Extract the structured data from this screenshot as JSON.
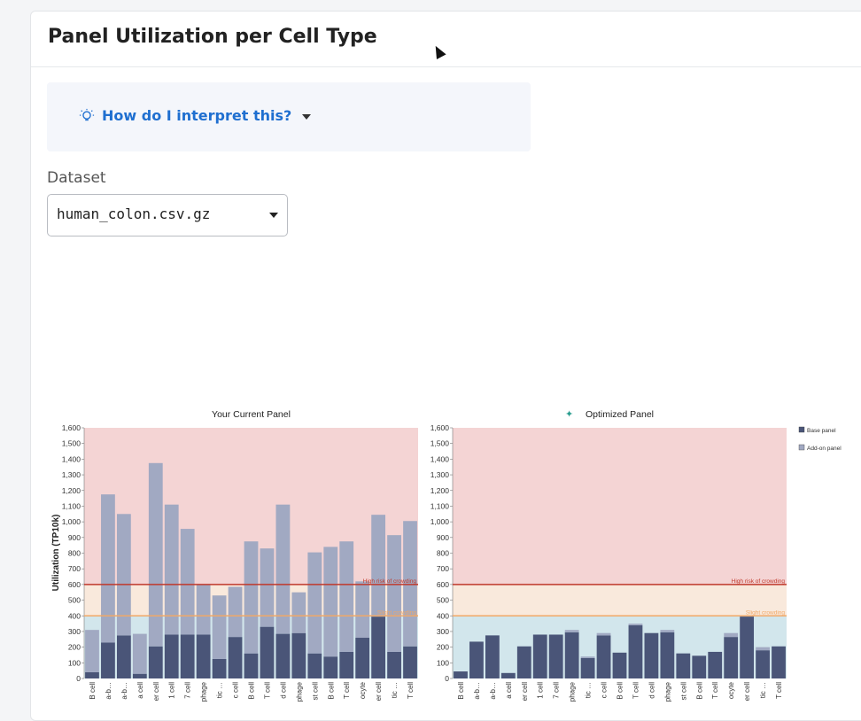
{
  "page": {
    "title": "Panel Utilization per Cell Type"
  },
  "interpret": {
    "label": "How do I interpret this?"
  },
  "dataset": {
    "label": "Dataset",
    "value": "human_colon.csv.gz"
  },
  "colors": {
    "base": "#4a5578",
    "addon": "#a1a9c2",
    "high_zone": "#f4d4d4",
    "mid_zone": "#f9e9dc",
    "low_zone": "#d2e6ec",
    "high_line": "#c0392b",
    "mid_line": "#f0a868"
  },
  "chart_data": [
    {
      "type": "bar",
      "title": "Your Current Panel",
      "ylabel": "Utilization (TP10k)",
      "ylim": [
        0,
        1600
      ],
      "yticks": [
        "0",
        "100",
        "200",
        "300",
        "400",
        "500",
        "600",
        "700",
        "800",
        "900",
        "1,000",
        "1,100",
        "1,200",
        "1,300",
        "1,400",
        "1,500",
        "1,600"
      ],
      "thresholds": [
        {
          "value": 600,
          "label": "High risk of crowding"
        },
        {
          "value": 400,
          "label": "Slight crowding"
        }
      ],
      "categories": [
        "B cell",
        "a-b…",
        "a-b…",
        "a cell",
        "er cell",
        "1 cell",
        "7 cell",
        "phage",
        "tic …",
        "c cell",
        "B cell",
        "T cell",
        "d cell",
        "phage",
        "st cell",
        "B cell",
        "T cell",
        "ocyte",
        "er cell",
        "tic …",
        "T cell"
      ],
      "series": [
        {
          "name": "Base panel",
          "values": [
            40,
            230,
            275,
            30,
            205,
            280,
            280,
            280,
            125,
            265,
            160,
            330,
            285,
            290,
            160,
            140,
            170,
            260,
            395,
            170,
            205
          ]
        },
        {
          "name": "Add-on panel",
          "values": [
            270,
            945,
            775,
            255,
            1170,
            830,
            675,
            320,
            405,
            320,
            715,
            500,
            825,
            260,
            645,
            700,
            705,
            360,
            650,
            745,
            800
          ]
        }
      ]
    },
    {
      "type": "bar",
      "title": "Optimized Panel",
      "ylim": [
        0,
        1600
      ],
      "yticks": [
        "0",
        "100",
        "200",
        "300",
        "400",
        "500",
        "600",
        "700",
        "800",
        "900",
        "1,000",
        "1,100",
        "1,200",
        "1,300",
        "1,400",
        "1,500",
        "1,600"
      ],
      "thresholds": [
        {
          "value": 600,
          "label": "High risk of crowding"
        },
        {
          "value": 400,
          "label": "Slight crowding"
        }
      ],
      "categories": [
        "B cell",
        "a-b…",
        "a-b…",
        "a cell",
        "er cell",
        "1 cell",
        "7 cell",
        "phage",
        "tic …",
        "c cell",
        "B cell",
        "T cell",
        "d cell",
        "phage",
        "st cell",
        "B cell",
        "T cell",
        "ocyte",
        "er cell",
        "tic …",
        "T cell"
      ],
      "series": [
        {
          "name": "Base panel",
          "values": [
            45,
            235,
            275,
            35,
            205,
            280,
            280,
            295,
            130,
            275,
            165,
            340,
            290,
            295,
            160,
            145,
            170,
            265,
            395,
            180,
            205
          ]
        },
        {
          "name": "Add-on panel",
          "values": [
            0,
            0,
            0,
            0,
            0,
            0,
            0,
            15,
            10,
            15,
            0,
            10,
            0,
            15,
            0,
            0,
            0,
            25,
            0,
            20,
            0
          ]
        }
      ]
    }
  ],
  "legend": [
    "Base panel",
    "Add-on panel"
  ]
}
